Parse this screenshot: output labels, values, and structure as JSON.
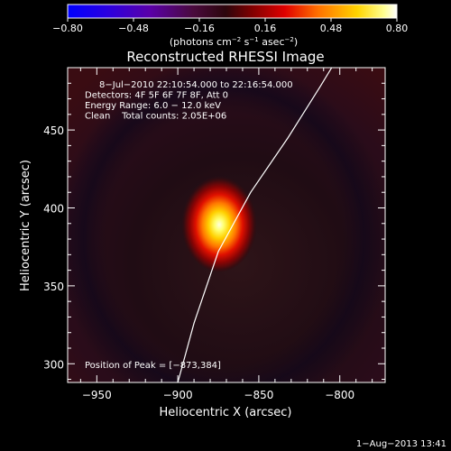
{
  "chart_data": {
    "type": "heatmap",
    "title": "Reconstructed RHESSI Image",
    "xlabel": "Heliocentric X (arcsec)",
    "ylabel": "Heliocentric Y (arcsec)",
    "xlim": [
      -968,
      -772
    ],
    "ylim": [
      288,
      490
    ],
    "xticks": [
      -950,
      -900,
      -850,
      -800
    ],
    "yticks": [
      300,
      350,
      400,
      450
    ],
    "xtick_labels": [
      "−950",
      "−900",
      "−850",
      "−800"
    ],
    "ytick_labels": [
      "300",
      "350",
      "400",
      "450"
    ],
    "colorbar": {
      "min": -0.8,
      "max": 0.8,
      "ticks": [
        -0.8,
        -0.48,
        -0.16,
        0.16,
        0.48,
        0.8
      ],
      "tick_labels": [
        "−0.80",
        "−0.48",
        "−0.16",
        "0.16",
        "0.48",
        "0.80"
      ],
      "label_html": "(photons cm<tspan baseline-shift=\"super\" font-size=\"7\">−2</tspan> s<tspan baseline-shift=\"super\" font-size=\"7\">−1</tspan> asec<tspan baseline-shift=\"super\" font-size=\"7\">−2</tspan>)",
      "label_text": "(photons cm−2 s−1 asec−2)",
      "colormap": "blue-purple-red-yellow-white"
    },
    "info_lines": [
      "8−Jul−2010 22:10:54.000 to 22:16:54.000",
      "Detectors: 4F 5F 6F 7F 8F, Att 0",
      "Energy Range: 6.0 − 12.0 keV",
      "Clean    Total counts: 2.05E+06"
    ],
    "peak_label": "Position of Peak = [−873,384]",
    "peak": {
      "x": -873,
      "y": 384
    },
    "limb_curve": [
      [
        -900,
        288
      ],
      [
        -890,
        326
      ],
      [
        -875,
        372
      ],
      [
        -855,
        410
      ],
      [
        -832,
        445
      ],
      [
        -812,
        478
      ],
      [
        -805,
        490
      ]
    ]
  },
  "footer": {
    "timestamp": "1−Aug−2013 13:41"
  }
}
